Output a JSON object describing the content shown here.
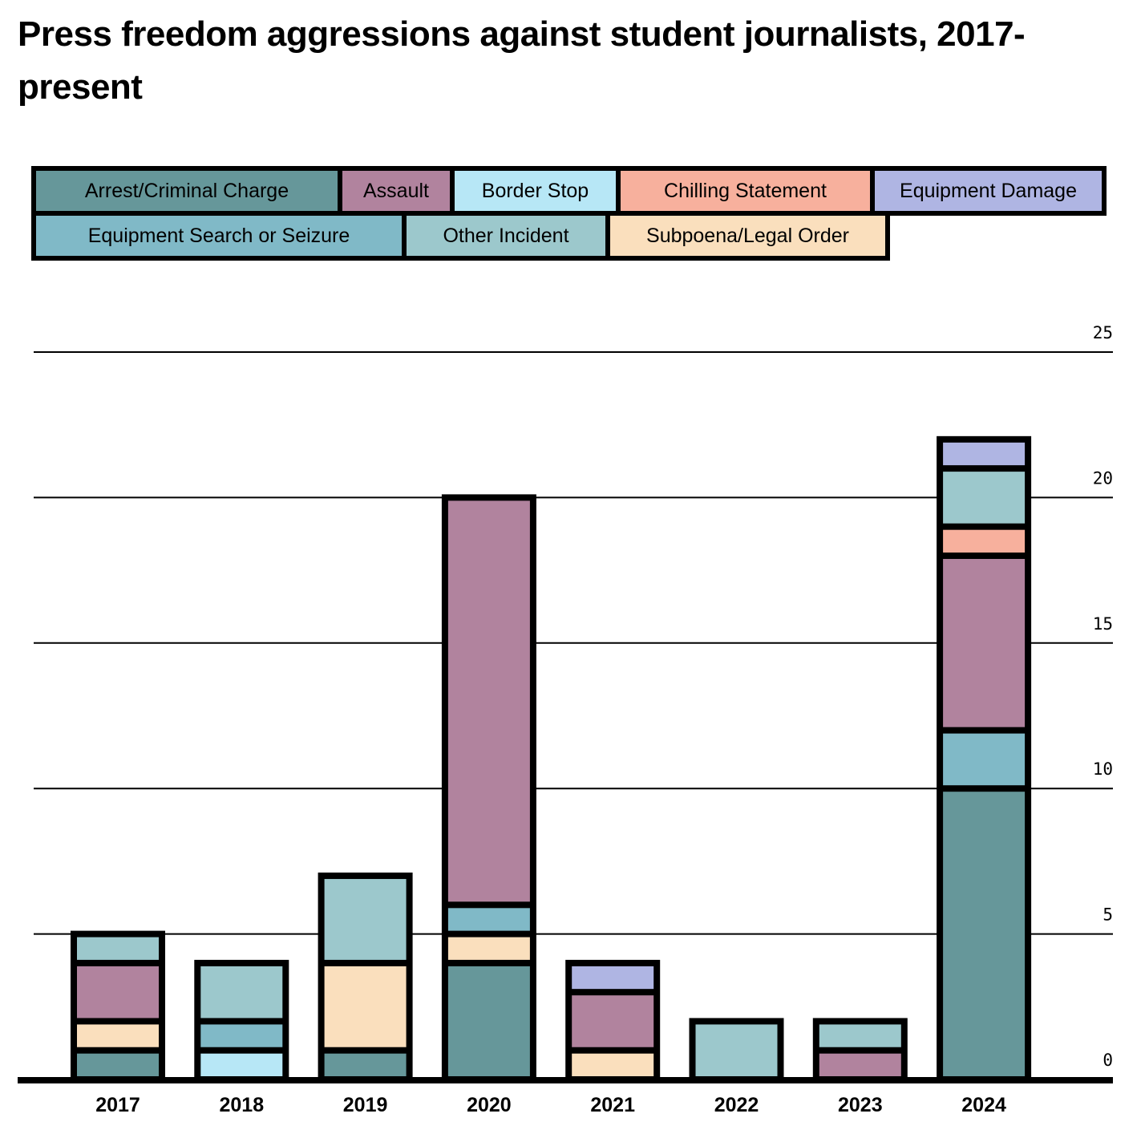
{
  "title": "Press freedom aggressions against student journalists, 2017-present",
  "legend": [
    {
      "label": "Arrest/Criminal Charge",
      "color": "#66979a"
    },
    {
      "label": "Assault",
      "color": "#b1839e"
    },
    {
      "label": "Border Stop",
      "color": "#b7e7f6"
    },
    {
      "label": "Chilling Statement",
      "color": "#f7b09d"
    },
    {
      "label": "Equipment Damage",
      "color": "#afb5e3"
    },
    {
      "label": "Equipment Search or Seizure",
      "color": "#80b9c7"
    },
    {
      "label": "Other Incident",
      "color": "#9cc8cc"
    },
    {
      "label": "Subpoena/Legal Order",
      "color": "#fadfbd"
    }
  ],
  "chart_data": {
    "type": "bar",
    "stacked": true,
    "title": "Press freedom aggressions against student journalists, 2017-present",
    "categories": [
      "2017",
      "2018",
      "2019",
      "2020",
      "2021",
      "2022",
      "2023",
      "2024"
    ],
    "series": [
      {
        "name": "Arrest/Criminal Charge",
        "color": "#66979a",
        "values": [
          1,
          0,
          1,
          4,
          0,
          0,
          0,
          10
        ]
      },
      {
        "name": "Border Stop",
        "color": "#b7e7f6",
        "values": [
          0,
          1,
          0,
          0,
          0,
          0,
          0,
          0
        ]
      },
      {
        "name": "Subpoena/Legal Order",
        "color": "#fadfbd",
        "values": [
          1,
          0,
          3,
          1,
          1,
          0,
          0,
          0
        ]
      },
      {
        "name": "Equipment Search or Seizure",
        "color": "#80b9c7",
        "values": [
          0,
          1,
          0,
          1,
          0,
          0,
          0,
          2
        ]
      },
      {
        "name": "Assault",
        "color": "#b1839e",
        "values": [
          2,
          0,
          0,
          14,
          2,
          0,
          1,
          6
        ]
      },
      {
        "name": "Chilling Statement",
        "color": "#f7b09d",
        "values": [
          0,
          0,
          0,
          0,
          0,
          0,
          0,
          1
        ]
      },
      {
        "name": "Other Incident",
        "color": "#9cc8cc",
        "values": [
          1,
          2,
          3,
          0,
          0,
          2,
          1,
          2
        ]
      },
      {
        "name": "Equipment Damage",
        "color": "#afb5e3",
        "values": [
          0,
          0,
          0,
          0,
          1,
          0,
          0,
          1
        ]
      }
    ],
    "yticks": [
      0,
      5,
      10,
      15,
      20,
      25
    ],
    "ylim": [
      0,
      25
    ],
    "grid": true,
    "ytick_side": "right",
    "legend_position": "top"
  }
}
